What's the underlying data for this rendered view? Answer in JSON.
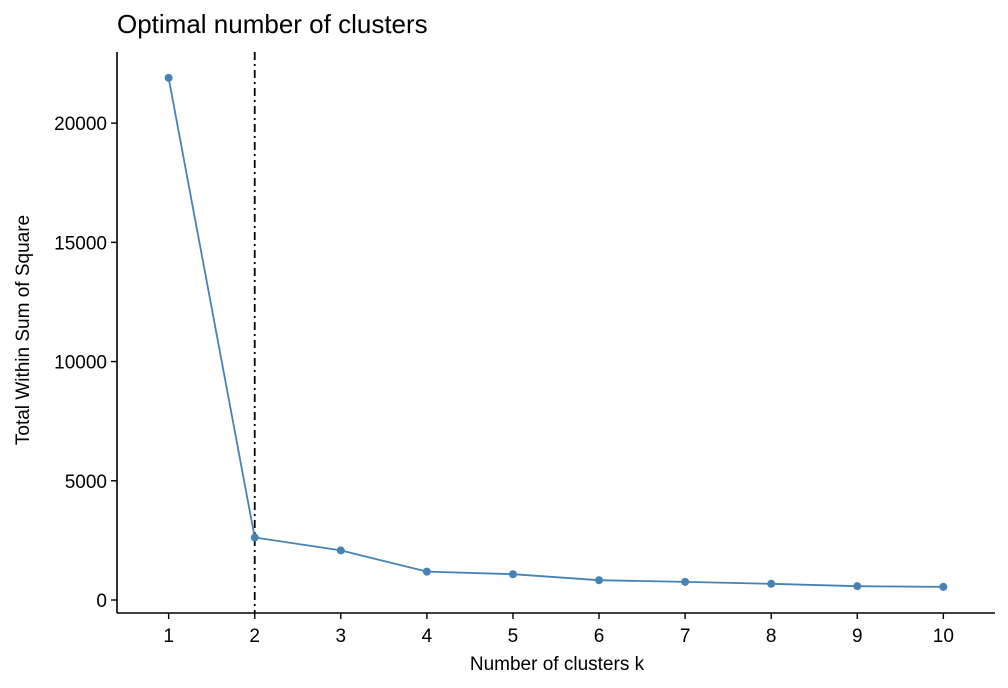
{
  "chart_data": {
    "type": "line",
    "title": "Optimal number of clusters",
    "xlabel": "Number of clusters k",
    "ylabel": "Total Within Sum of Square",
    "x": [
      "1",
      "2",
      "3",
      "4",
      "5",
      "6",
      "7",
      "8",
      "9",
      "10"
    ],
    "series": [
      {
        "values": [
          21900,
          2620,
          2080,
          1190,
          1080,
          830,
          760,
          680,
          580,
          550
        ]
      }
    ],
    "yticks": [
      0,
      5000,
      10000,
      15000,
      20000
    ],
    "ylim": [
      0,
      22900
    ],
    "xlim": [
      0.4,
      10.6
    ],
    "vline_x": 2,
    "vline_style": "dashdot",
    "grid": false,
    "legend": "none",
    "colors": {
      "series": "#4682b4",
      "axes": "#000000",
      "vline": "#000000"
    }
  }
}
